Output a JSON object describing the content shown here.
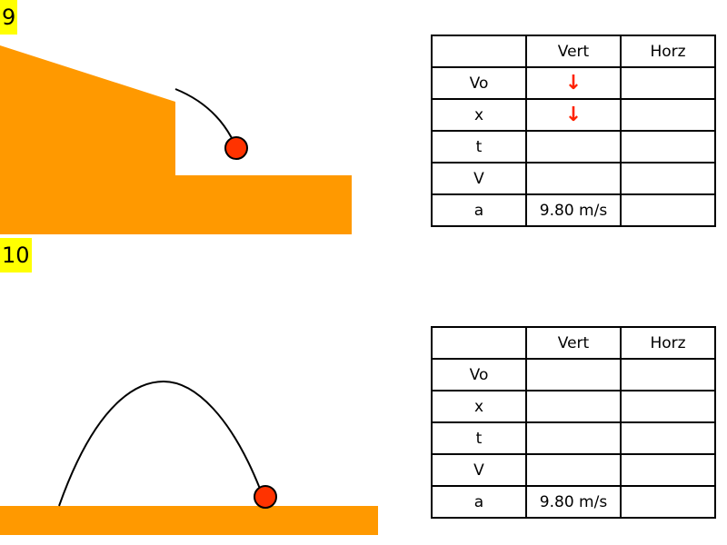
{
  "colors": {
    "ground": "#ff9900",
    "ball": "#ff3300",
    "label_bg": "#ffff00",
    "arrow": "#ff2200"
  },
  "problems": [
    {
      "number": "9",
      "table": {
        "headers": [
          "",
          "Vert",
          "Horz"
        ],
        "rows": [
          {
            "label": "Vo",
            "vert": "↓",
            "horz": ""
          },
          {
            "label": "x",
            "vert": "↓",
            "horz": ""
          },
          {
            "label": "t",
            "vert": "",
            "horz": ""
          },
          {
            "label": "V",
            "vert": "",
            "horz": ""
          },
          {
            "label": "a",
            "vert": "9.80 m/s",
            "horz": ""
          }
        ]
      }
    },
    {
      "number": "10",
      "table": {
        "headers": [
          "",
          "Vert",
          "Horz"
        ],
        "rows": [
          {
            "label": "Vo",
            "vert": "",
            "horz": ""
          },
          {
            "label": "x",
            "vert": "",
            "horz": ""
          },
          {
            "label": "t",
            "vert": "",
            "horz": ""
          },
          {
            "label": "V",
            "vert": "",
            "horz": ""
          },
          {
            "label": "a",
            "vert": "9.80 m/s",
            "horz": ""
          }
        ]
      }
    }
  ]
}
